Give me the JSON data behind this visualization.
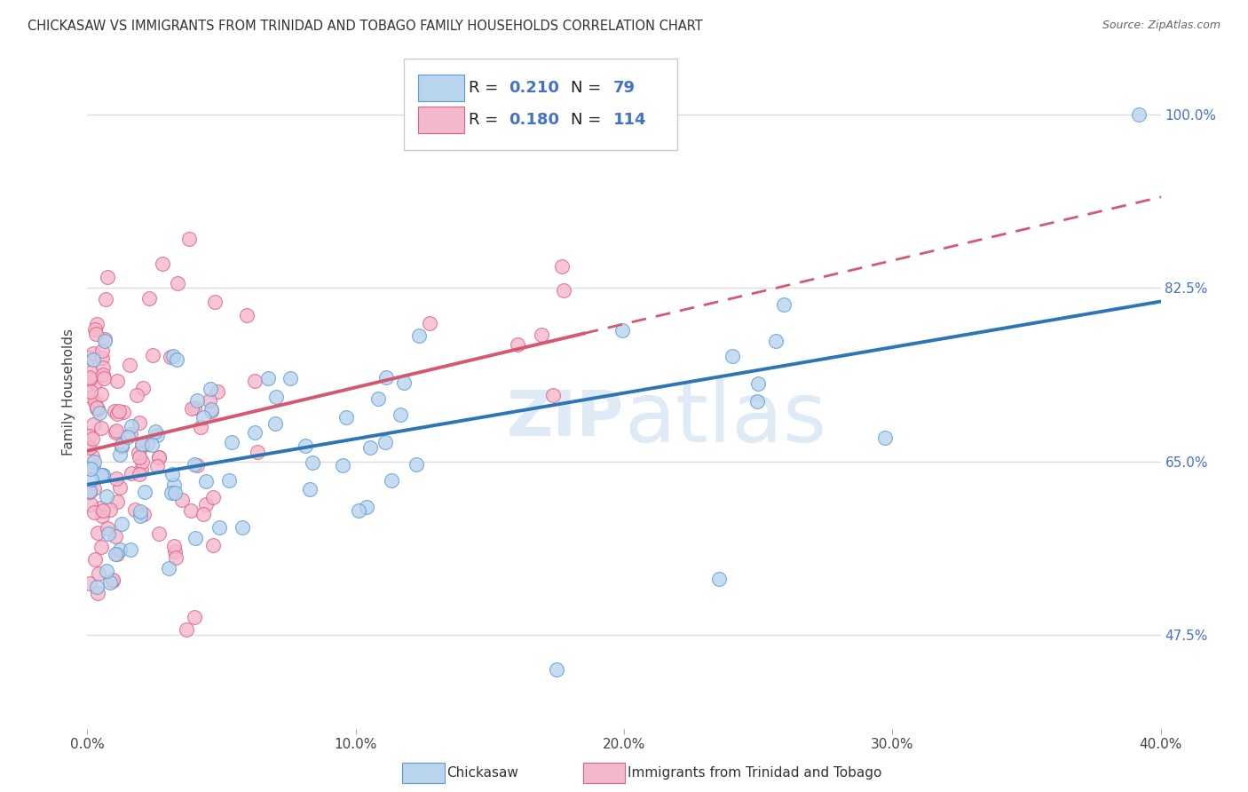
{
  "title": "CHICKASAW VS IMMIGRANTS FROM TRINIDAD AND TOBAGO FAMILY HOUSEHOLDS CORRELATION CHART",
  "source": "Source: ZipAtlas.com",
  "ylabel": "Family Households",
  "watermark": "ZIPatlas",
  "series": [
    {
      "name": "Chickasaw",
      "R": 0.21,
      "N": 79,
      "color": "#b8d4ee",
      "edge_color": "#5b9bd5",
      "line_color": "#2e75b6"
    },
    {
      "name": "Immigrants from Trinidad and Tobago",
      "R": 0.18,
      "N": 114,
      "color": "#f4b8cc",
      "edge_color": "#e06080",
      "line_color": "#d45872"
    }
  ],
  "xlim": [
    0.0,
    0.4
  ],
  "ylim_data": [
    0.38,
    1.06
  ],
  "ytick_vals": [
    0.475,
    0.65,
    0.825,
    1.0
  ],
  "ytick_labels": [
    "47.5%",
    "65.0%",
    "82.5%",
    "100.0%"
  ],
  "xtick_vals": [
    0.0,
    0.1,
    0.2,
    0.3,
    0.4
  ],
  "xtick_labels": [
    "0.0%",
    "10.0%",
    "20.0%",
    "30.0%",
    "40.0%"
  ],
  "grid_color": "#dddddd",
  "background_color": "#ffffff",
  "title_fontsize": 10.5,
  "tick_label_color_right": "#4472c4",
  "legend_R_N_color": "#4472c4"
}
